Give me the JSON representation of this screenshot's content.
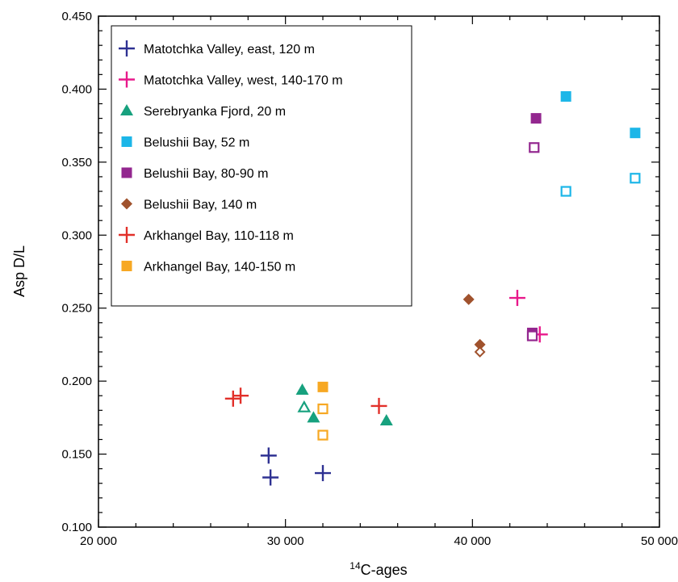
{
  "chart_data": {
    "type": "scatter",
    "title": "",
    "xlabel_sup": "14",
    "xlabel": "C-ages",
    "ylabel": "Asp D/L",
    "xlim": [
      20000,
      50000
    ],
    "ylim": [
      0.1,
      0.45
    ],
    "x_ticks": [
      20000,
      30000,
      40000,
      50000
    ],
    "x_tick_labels": [
      "20 000",
      "30 000",
      "40 000",
      "50 000"
    ],
    "y_ticks": [
      0.1,
      0.15,
      0.2,
      0.25,
      0.3,
      0.35,
      0.4,
      0.45
    ],
    "y_tick_labels": [
      "0.100",
      "0.150",
      "0.200",
      "0.250",
      "0.300",
      "0.350",
      "0.400",
      "0.450"
    ],
    "grid": false,
    "legend_position": "top-left",
    "series": [
      {
        "name": "Matotchka Valley, east, 120 m",
        "marker": "plus",
        "color": "#2e3192",
        "points": [
          {
            "x": 29100,
            "y": 0.149,
            "filled": true
          },
          {
            "x": 29200,
            "y": 0.134,
            "filled": true
          },
          {
            "x": 32000,
            "y": 0.137,
            "filled": true
          }
        ]
      },
      {
        "name": "Matotchka Valley, west, 140-170 m",
        "marker": "plus",
        "color": "#e8198b",
        "points": [
          {
            "x": 42400,
            "y": 0.257,
            "filled": true
          },
          {
            "x": 43600,
            "y": 0.232,
            "filled": true
          }
        ]
      },
      {
        "name": "Serebryanka Fjord, 20 m",
        "marker": "triangle",
        "color": "#17a17e",
        "points": [
          {
            "x": 30900,
            "y": 0.194,
            "filled": true
          },
          {
            "x": 31000,
            "y": 0.182,
            "filled": false
          },
          {
            "x": 31500,
            "y": 0.175,
            "filled": true
          },
          {
            "x": 35400,
            "y": 0.173,
            "filled": true
          }
        ]
      },
      {
        "name": "Belushii Bay, 52 m",
        "marker": "square",
        "color": "#1cb6e8",
        "points": [
          {
            "x": 45000,
            "y": 0.395,
            "filled": true
          },
          {
            "x": 48700,
            "y": 0.37,
            "filled": true
          },
          {
            "x": 48700,
            "y": 0.339,
            "filled": false
          },
          {
            "x": 45000,
            "y": 0.33,
            "filled": false
          }
        ]
      },
      {
        "name": "Belushii Bay, 80-90 m",
        "marker": "square",
        "color": "#93278f",
        "points": [
          {
            "x": 43400,
            "y": 0.38,
            "filled": true
          },
          {
            "x": 43300,
            "y": 0.36,
            "filled": false
          },
          {
            "x": 43200,
            "y": 0.233,
            "filled": true
          },
          {
            "x": 43200,
            "y": 0.231,
            "filled": false
          }
        ]
      },
      {
        "name": "Belushii Bay, 140 m",
        "marker": "diamond",
        "color": "#a0522d",
        "points": [
          {
            "x": 39800,
            "y": 0.256,
            "filled": true
          },
          {
            "x": 40400,
            "y": 0.225,
            "filled": true
          },
          {
            "x": 40400,
            "y": 0.22,
            "filled": false
          }
        ]
      },
      {
        "name": "Arkhangel Bay, 110-118 m",
        "marker": "plus",
        "color": "#e2302a",
        "points": [
          {
            "x": 27200,
            "y": 0.188,
            "filled": true
          },
          {
            "x": 27600,
            "y": 0.19,
            "filled": true
          },
          {
            "x": 35000,
            "y": 0.183,
            "filled": true
          }
        ]
      },
      {
        "name": "Arkhangel Bay, 140-150 m",
        "marker": "square",
        "color": "#f7a823",
        "points": [
          {
            "x": 32000,
            "y": 0.196,
            "filled": true
          },
          {
            "x": 32000,
            "y": 0.181,
            "filled": false
          },
          {
            "x": 32000,
            "y": 0.163,
            "filled": false
          }
        ]
      }
    ]
  }
}
